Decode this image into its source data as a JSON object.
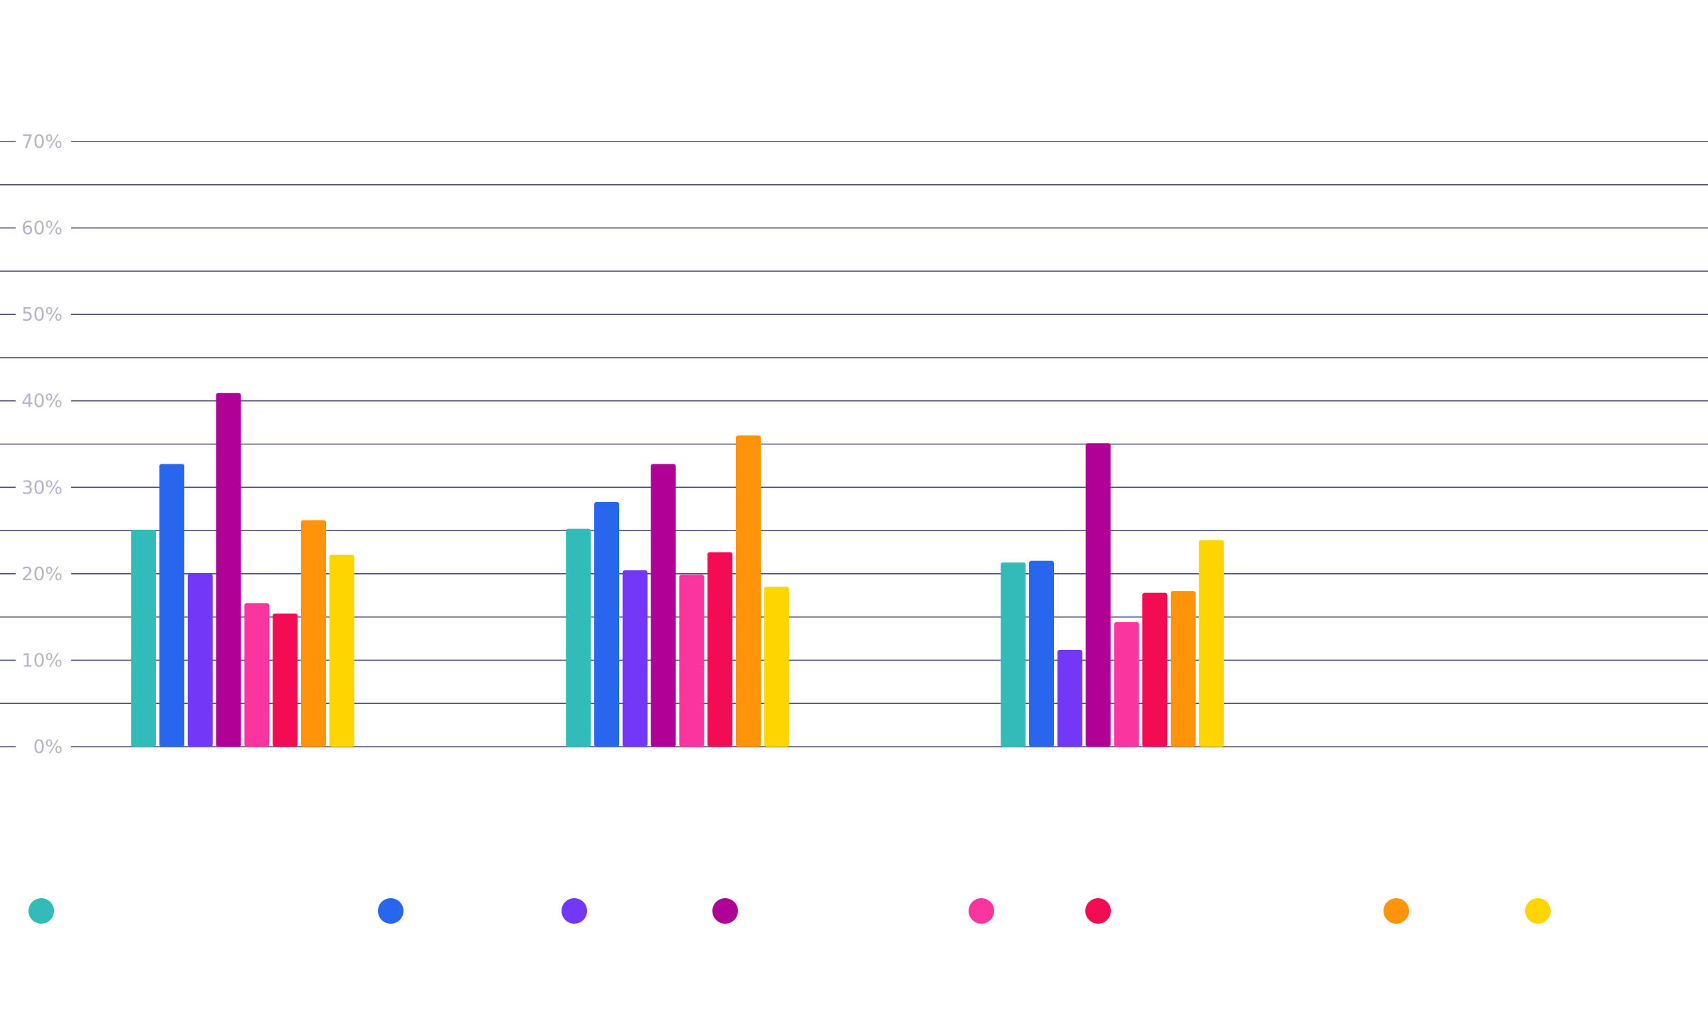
{
  "chart_data": {
    "type": "bar",
    "title": "",
    "xlabel": "",
    "ylabel": "",
    "ylim": [
      0,
      70
    ],
    "y_ticks": [
      "0%",
      "10%",
      "20%",
      "30%",
      "40%",
      "50%",
      "60%",
      "70%"
    ],
    "y_tick_values": [
      0,
      10,
      20,
      30,
      40,
      50,
      60,
      70
    ],
    "grid": true,
    "legend_placement": "bottom",
    "categories": [
      "",
      "",
      ""
    ],
    "series": [
      {
        "color": "#33bbba",
        "values": [
          25.1,
          25.2,
          21.3
        ]
      },
      {
        "color": "#2866ee",
        "values": [
          32.7,
          28.3,
          21.5
        ]
      },
      {
        "color": "#7337f8",
        "values": [
          20.0,
          20.4,
          11.2
        ]
      },
      {
        "color": "#b10096",
        "values": [
          40.9,
          32.7,
          35.1
        ]
      },
      {
        "color": "#fb359f",
        "values": [
          16.6,
          19.9,
          14.4
        ]
      },
      {
        "color": "#f30b53",
        "values": [
          15.4,
          22.5,
          17.8
        ]
      },
      {
        "color": "#ff9309",
        "values": [
          26.2,
          36.0,
          18.0
        ]
      },
      {
        "color": "#ffd500",
        "values": [
          22.2,
          18.5,
          23.9
        ]
      }
    ]
  }
}
